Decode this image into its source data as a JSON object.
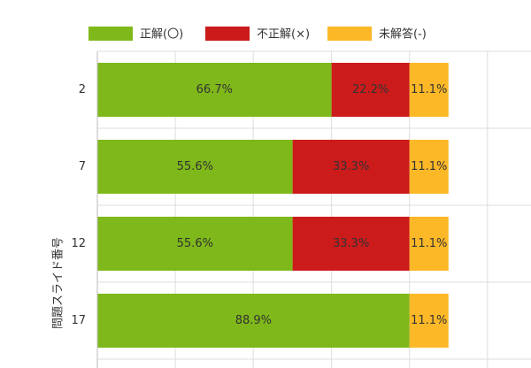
{
  "chart_data": {
    "type": "stacked-bar-horizontal",
    "y_axis_label": "問題スライド番号",
    "categories": [
      "2",
      "7",
      "12",
      "17"
    ],
    "series": [
      {
        "name": "正解(〇)",
        "color": "#7fb81a",
        "values": [
          66.7,
          55.6,
          55.6,
          88.9
        ],
        "value_labels": [
          "66.7%",
          "55.6%",
          "55.6%",
          "88.9%"
        ]
      },
      {
        "name": "不正解(×)",
        "color": "#cc1b1b",
        "values": [
          22.2,
          33.3,
          33.3,
          null
        ],
        "value_labels": [
          "22.2%",
          "33.3%",
          "33.3%",
          null
        ]
      },
      {
        "name": "未解答(-)",
        "color": "#fdb827",
        "values": [
          11.1,
          11.1,
          11.1,
          11.1
        ],
        "value_labels": [
          "11.1%",
          "11.1%",
          "11.1%",
          "11.1%"
        ]
      }
    ],
    "xlim": [
      0,
      123.5
    ],
    "xgrid": [
      0,
      22.2,
      44.4,
      66.7,
      88.9,
      111.1
    ],
    "grid": true
  }
}
